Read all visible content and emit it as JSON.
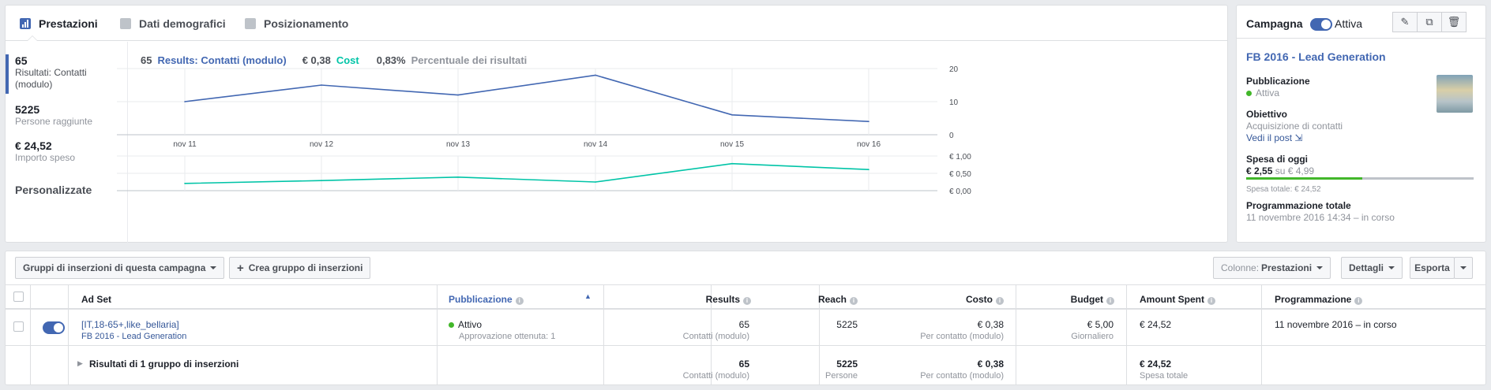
{
  "tabs": [
    {
      "label": "Prestazioni"
    },
    {
      "label": "Dati demografici"
    },
    {
      "label": "Posizionamento"
    }
  ],
  "metrics": [
    {
      "value": "65",
      "label": "Risultati: Contatti (modulo)"
    },
    {
      "value": "5225",
      "label": "Persone raggiunte"
    },
    {
      "value": "€ 24,52",
      "label": "Importo speso"
    }
  ],
  "custom_label": "Personalizzate",
  "legend": {
    "results_count": "65",
    "results_label": "Results: Contatti (modulo)",
    "cost_value": "€ 0,38",
    "cost_label": "Cost",
    "pct_value": "0,83%",
    "pct_label": "Percentuale dei risultati"
  },
  "chart_data": [
    {
      "type": "line",
      "x": [
        "nov 11",
        "nov 12",
        "nov 13",
        "nov 14",
        "nov 15",
        "nov 16"
      ],
      "series": [
        {
          "name": "Results: Contatti (modulo)",
          "values": [
            10,
            15,
            12,
            18,
            6,
            4
          ]
        }
      ],
      "ylim": [
        0,
        20
      ],
      "yticks": [
        "20",
        "10",
        "0"
      ],
      "grid": true,
      "color": "#4267b2"
    },
    {
      "type": "line",
      "x": [
        "nov 11",
        "nov 12",
        "nov 13",
        "nov 14",
        "nov 15",
        "nov 16"
      ],
      "series": [
        {
          "name": "Cost",
          "values": [
            0.21,
            0.29,
            0.39,
            0.25,
            0.78,
            0.61
          ]
        }
      ],
      "ylim": [
        0,
        1
      ],
      "yticks": [
        "€ 1,00",
        "€ 0,50",
        "€ 0,00"
      ],
      "grid": true,
      "color": "#00c4a7"
    }
  ],
  "campaign": {
    "header": "Campagna",
    "status": "Attiva",
    "name": "FB 2016 - Lead Generation",
    "pub_label": "Pubblicazione",
    "pub_value": "Attiva",
    "obj_label": "Obiettivo",
    "obj_value": "Acquisizione di contatti",
    "post_link": "Vedi il post",
    "spend_label": "Spesa di oggi",
    "spend_value": "€ 2,55",
    "spend_of": "su € 4,99",
    "spend_fraction": 0.51,
    "total_spend": "Spesa totale: € 24,52",
    "sched_label": "Programmazione totale",
    "sched_value": "11 novembre 2016 14:34 – in corso"
  },
  "adsets": {
    "group_dropdown": "Gruppi di inserzioni di questa campagna",
    "create_button": "Crea gruppo di inserzioni",
    "columns_prefix": "Colonne:",
    "columns_value": "Prestazioni",
    "details_button": "Dettagli",
    "export_button": "Esporta",
    "headers": {
      "adset": "Ad Set",
      "delivery": "Pubblicazione",
      "results": "Results",
      "reach": "Reach",
      "cost": "Costo",
      "budget": "Budget",
      "amount": "Amount Spent",
      "schedule": "Programmazione"
    },
    "row": {
      "name": "[IT,18-65+,like_bellaria]",
      "campaign": "FB 2016 - Lead Generation",
      "delivery": "Attivo",
      "delivery_sub": "Approvazione ottenuta: 1",
      "results": "65",
      "results_sub": "Contatti (modulo)",
      "reach": "5225",
      "cost": "€ 0,38",
      "cost_sub": "Per contatto (modulo)",
      "budget": "€ 5,00",
      "budget_sub": "Giornaliero",
      "amount": "€ 24,52",
      "schedule": "11 novembre 2016 – in corso"
    },
    "summary": {
      "label": "Risultati di 1 gruppo di inserzioni",
      "results": "65",
      "results_sub": "Contatti (modulo)",
      "reach": "5225",
      "reach_sub": "Persone",
      "cost": "€ 0,38",
      "cost_sub": "Per contatto (modulo)",
      "amount": "€ 24,52",
      "amount_sub": "Spesa totale"
    }
  }
}
